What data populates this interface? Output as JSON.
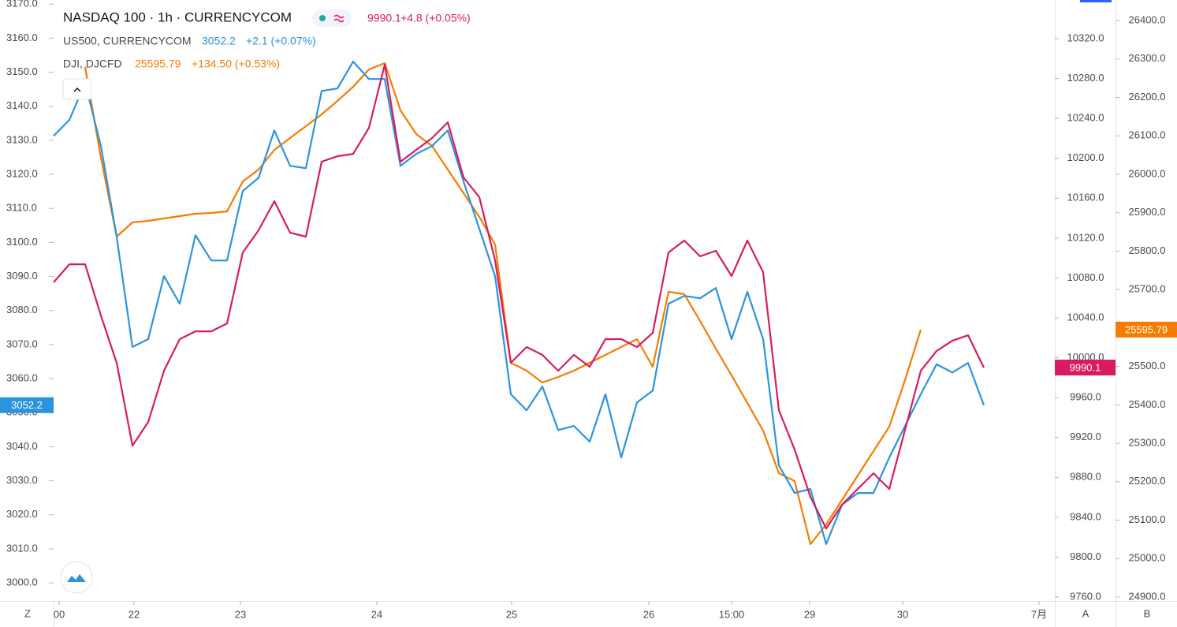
{
  "chart_data": {
    "type": "line",
    "series": [
      {
        "name": "NASDAQ 100 · 1h · CURRENCYCOM",
        "color": "#d81b60",
        "axis": "y2",
        "last": 9990.1,
        "change": "+4.8 (+0.05%)",
        "values": [
          10075.6,
          10093.7,
          10093.7,
          10042.3,
          9994.9,
          9911.8,
          9935.5,
          9986.9,
          10018.6,
          10026.5,
          10026.5,
          10034.4,
          10105.6,
          10127.8,
          10157.0,
          10125.4,
          10121.4,
          10196.6,
          10202.1,
          10204.5,
          10230.6,
          10293.9,
          10196.6,
          10208.5,
          10220.3,
          10236.1,
          10180.8,
          10161.0,
          10097.7,
          9994.9,
          10010.7,
          10002.8,
          9986.9,
          10002.8,
          9990.9,
          10018.6,
          10018.6,
          10010.7,
          10024.9,
          10105.6,
          10117.5,
          10101.7,
          10107.2,
          10081.9,
          10117.5,
          10085.8,
          9947.4,
          9907.8,
          9860.4,
          9828.7,
          9852.5,
          9868.3,
          9884.1,
          9868.3,
          9927.6,
          9986.9,
          10006.7,
          10017.0,
          10022.5,
          9990.1
        ]
      },
      {
        "name": "US500, CURRENCYCOM",
        "color": "#2b94de",
        "axis": "y",
        "last": 3052.2,
        "change": "+2.1 (+0.07%)",
        "values": [
          3131.3,
          3136.0,
          3146.8,
          3128.3,
          3101.7,
          3069.3,
          3071.6,
          3090.1,
          3082.0,
          3102.1,
          3094.7,
          3094.7,
          3115.1,
          3119.0,
          3132.9,
          3122.5,
          3121.8,
          3144.5,
          3145.2,
          3153.1,
          3148.0,
          3148.0,
          3122.5,
          3126.0,
          3128.3,
          3132.9,
          3117.9,
          3104.0,
          3090.1,
          3055.4,
          3050.7,
          3057.7,
          3044.9,
          3046.1,
          3041.5,
          3055.4,
          3036.8,
          3053.0,
          3056.5,
          3082.0,
          3084.3,
          3083.6,
          3086.6,
          3071.6,
          3085.5,
          3071.6,
          3034.5,
          3026.4,
          3027.6,
          3011.4,
          3022.9,
          3026.4,
          3026.4,
          3036.8,
          3046.1,
          3055.4,
          3064.2,
          3061.8,
          3064.6,
          3052.2
        ]
      },
      {
        "name": "DJI, DJCFD",
        "color": "#f57c00",
        "axis": "y3",
        "last": 25595.79,
        "change": "+134.50 (+0.53%)",
        "values": [
          null,
          null,
          26278.9,
          26043.0,
          25837.8,
          25874.7,
          25878.8,
          25884.9,
          25891.1,
          25897.3,
          25899.3,
          25903.4,
          25981.4,
          26012.2,
          26063.5,
          26094.3,
          26125.0,
          26155.8,
          26190.7,
          26227.6,
          26272.8,
          26289.2,
          26166.1,
          26104.5,
          26073.7,
          26012.2,
          25950.6,
          25889.0,
          25817.2,
          25509.4,
          25488.9,
          25458.1,
          25472.5,
          25488.9,
          25509.4,
          25530.0,
          25550.5,
          25571.0,
          25499.2,
          25694.1,
          25688.0,
          25618.2,
          25546.4,
          25476.6,
          25404.8,
          25333.0,
          25222.2,
          25201.6,
          25037.5,
          25088.8,
          25152.4,
          25216.0,
          25279.6,
          25343.2,
          25464.3,
          25595.79,
          null,
          null,
          null,
          null
        ]
      }
    ],
    "xlim": [
      0,
      63.5
    ],
    "xticks": [
      {
        "value": 0.35,
        "label": "00"
      },
      {
        "value": 5.1,
        "label": "22"
      },
      {
        "value": 11.85,
        "label": "23"
      },
      {
        "value": 20.5,
        "label": "24"
      },
      {
        "value": 29.05,
        "label": "25"
      },
      {
        "value": 37.75,
        "label": "26"
      },
      {
        "value": 43,
        "label": "15:00"
      },
      {
        "value": 47.95,
        "label": "29"
      },
      {
        "value": 53.85,
        "label": "30"
      },
      {
        "value": 62.5,
        "label": "7月"
      }
    ],
    "ylim": [
      2994.7,
      3171.2
    ],
    "yticks": [
      {
        "value": 3000,
        "label": "3000.0"
      },
      {
        "value": 3010,
        "label": "3010.0"
      },
      {
        "value": 3020,
        "label": "3020.0"
      },
      {
        "value": 3030,
        "label": "3030.0"
      },
      {
        "value": 3040,
        "label": "3040.0"
      },
      {
        "value": 3050,
        "label": "3050.0"
      },
      {
        "value": 3060,
        "label": "3060.0"
      },
      {
        "value": 3070,
        "label": "3070.0"
      },
      {
        "value": 3080,
        "label": "3080.0"
      },
      {
        "value": 3090,
        "label": "3090.0"
      },
      {
        "value": 3100,
        "label": "3100.0"
      },
      {
        "value": 3110,
        "label": "3110.0"
      },
      {
        "value": 3120,
        "label": "3120.0"
      },
      {
        "value": 3130,
        "label": "3130.0"
      },
      {
        "value": 3140,
        "label": "3140.0"
      },
      {
        "value": 3150,
        "label": "3150.0"
      },
      {
        "value": 3160,
        "label": "3160.0"
      },
      {
        "value": 3170,
        "label": "3170.0"
      }
    ],
    "y2lim": [
      9756.0,
      10358.8
    ],
    "y2ticks": [
      {
        "value": 9760,
        "label": "9760.0"
      },
      {
        "value": 9800,
        "label": "9800.0"
      },
      {
        "value": 9840,
        "label": "9840.0"
      },
      {
        "value": 9880,
        "label": "9880.0"
      },
      {
        "value": 9920,
        "label": "9920.0"
      },
      {
        "value": 9960,
        "label": "9960.0"
      },
      {
        "value": 10000,
        "label": "10000.0"
      },
      {
        "value": 10040,
        "label": "10040.0"
      },
      {
        "value": 10080,
        "label": "10080.0"
      },
      {
        "value": 10120,
        "label": "10120.0"
      },
      {
        "value": 10160,
        "label": "10160.0"
      },
      {
        "value": 10200,
        "label": "10200.0"
      },
      {
        "value": 10240,
        "label": "10240.0"
      },
      {
        "value": 10280,
        "label": "10280.0"
      },
      {
        "value": 10320,
        "label": "10320.0"
      }
    ],
    "y3lim": [
      24889.7,
      26453.4
    ],
    "y3ticks": [
      {
        "value": 24900,
        "label": "24900.0"
      },
      {
        "value": 25000,
        "label": "25000.0"
      },
      {
        "value": 25100,
        "label": "25100.0"
      },
      {
        "value": 25200,
        "label": "25200.0"
      },
      {
        "value": 25300,
        "label": "25300.0"
      },
      {
        "value": 25400,
        "label": "25400.0"
      },
      {
        "value": 25500,
        "label": "25500.0"
      },
      {
        "value": 25600,
        "label": "25600.0"
      },
      {
        "value": 25700,
        "label": "25700.0"
      },
      {
        "value": 25800,
        "label": "25800.0"
      },
      {
        "value": 25900,
        "label": "25900.0"
      },
      {
        "value": 26000,
        "label": "26000.0"
      },
      {
        "value": 26100,
        "label": "26100.0"
      },
      {
        "value": 26200,
        "label": "26200.0"
      },
      {
        "value": 26300,
        "label": "26300.0"
      },
      {
        "value": 26400,
        "label": "26400.0"
      }
    ],
    "buttons": [
      "Z",
      "A",
      "B"
    ]
  }
}
